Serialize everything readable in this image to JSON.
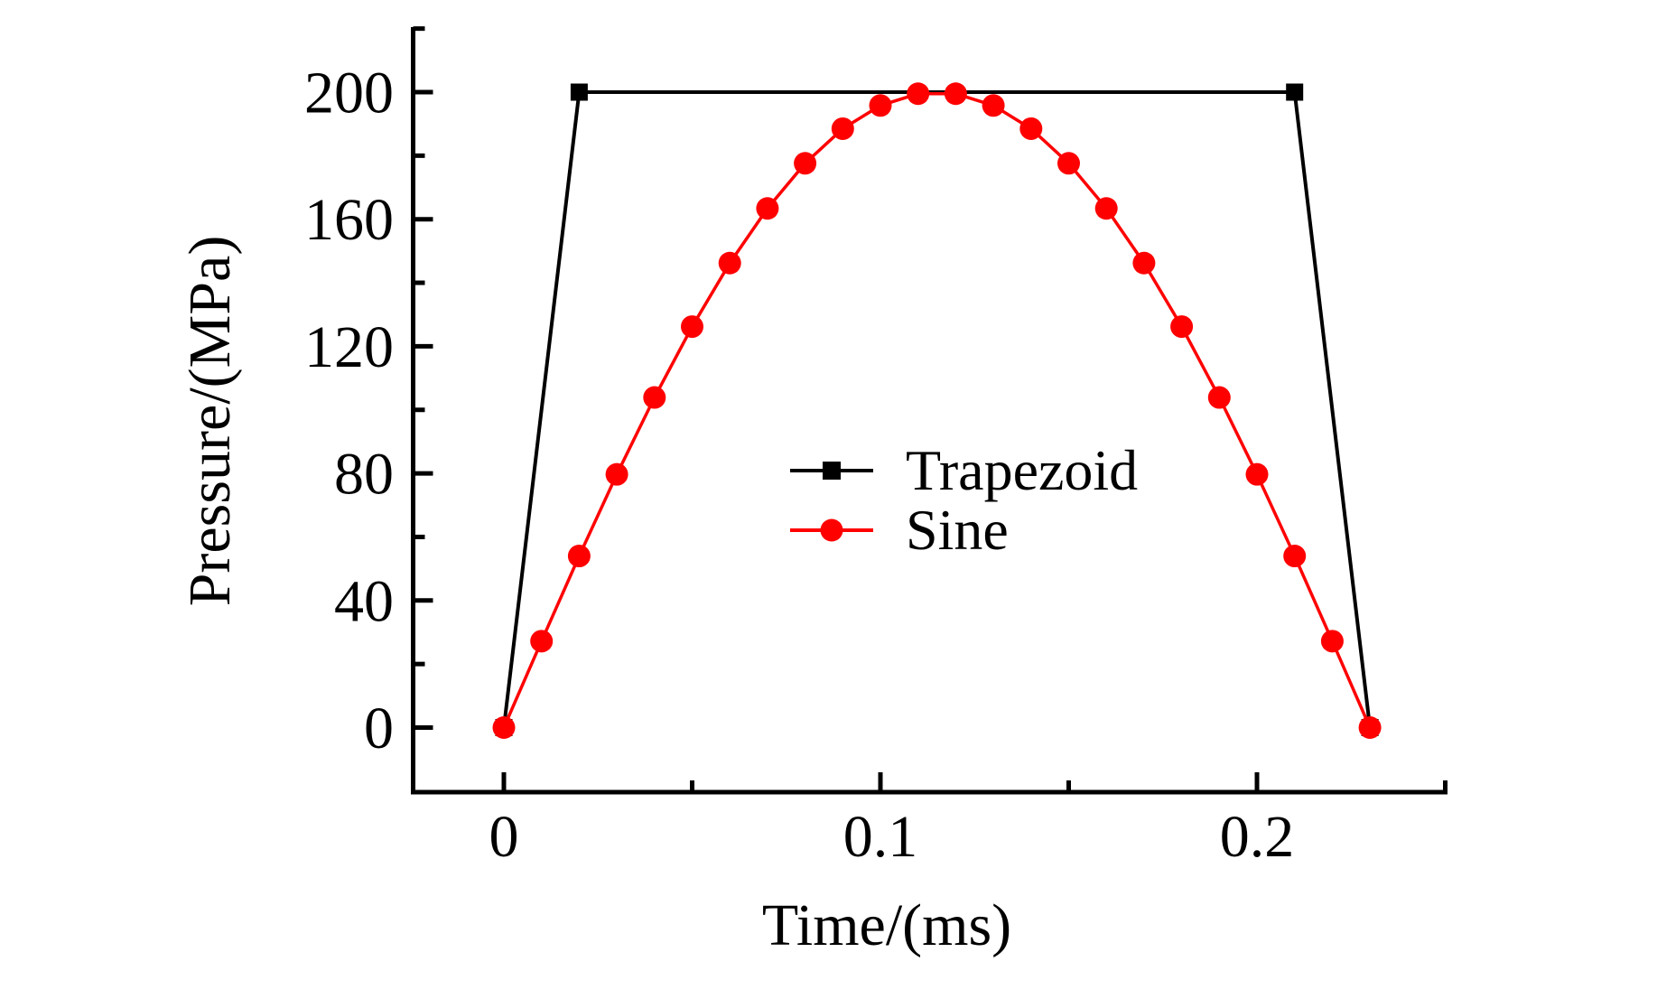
{
  "chart_data": {
    "type": "line",
    "title": "",
    "xlabel": "Time/(ms)",
    "ylabel": "Pressure/(MPa)",
    "xlim": [
      -0.0235,
      0.2506
    ],
    "ylim": [
      -20.3,
      220.5
    ],
    "grid": false,
    "legend_position": "inside center-right, no frame",
    "x_major_ticks": [
      0,
      0.1,
      0.2
    ],
    "x_major_tick_labels": [
      "0",
      "0.1",
      "0.2"
    ],
    "x_minor_ticks": [
      0.05,
      0.15,
      0.25
    ],
    "y_major_ticks": [
      0,
      40,
      80,
      120,
      160,
      200
    ],
    "y_major_tick_labels": [
      "0",
      "40",
      "80",
      "120",
      "160",
      "200"
    ],
    "y_minor_ticks": [
      20,
      60,
      100,
      140,
      180,
      220
    ],
    "series": [
      {
        "name": "Trapezoid",
        "color": "#000000",
        "marker": "square",
        "x": [
          0,
          0.02,
          0.21,
          0.23
        ],
        "y": [
          0,
          200,
          200,
          0
        ]
      },
      {
        "name": "Sine",
        "color": "#ff0000",
        "marker": "circle",
        "x": [
          0,
          0.01,
          0.02,
          0.03,
          0.04,
          0.05,
          0.06,
          0.07,
          0.08,
          0.09,
          0.1,
          0.11,
          0.12,
          0.13,
          0.14,
          0.15,
          0.16,
          0.17,
          0.18,
          0.19,
          0.2,
          0.21,
          0.22,
          0.23
        ],
        "y": [
          0,
          27.2,
          54.0,
          79.7,
          103.9,
          126.2,
          146.2,
          163.4,
          177.6,
          188.5,
          195.8,
          199.5,
          199.5,
          195.8,
          188.5,
          177.6,
          163.4,
          146.2,
          126.2,
          103.9,
          79.7,
          54.0,
          27.2,
          0
        ]
      }
    ]
  },
  "colors": {
    "background": "#ffffff",
    "axis": "#000000",
    "trapezoid": "#000000",
    "sine": "#ff0000"
  }
}
